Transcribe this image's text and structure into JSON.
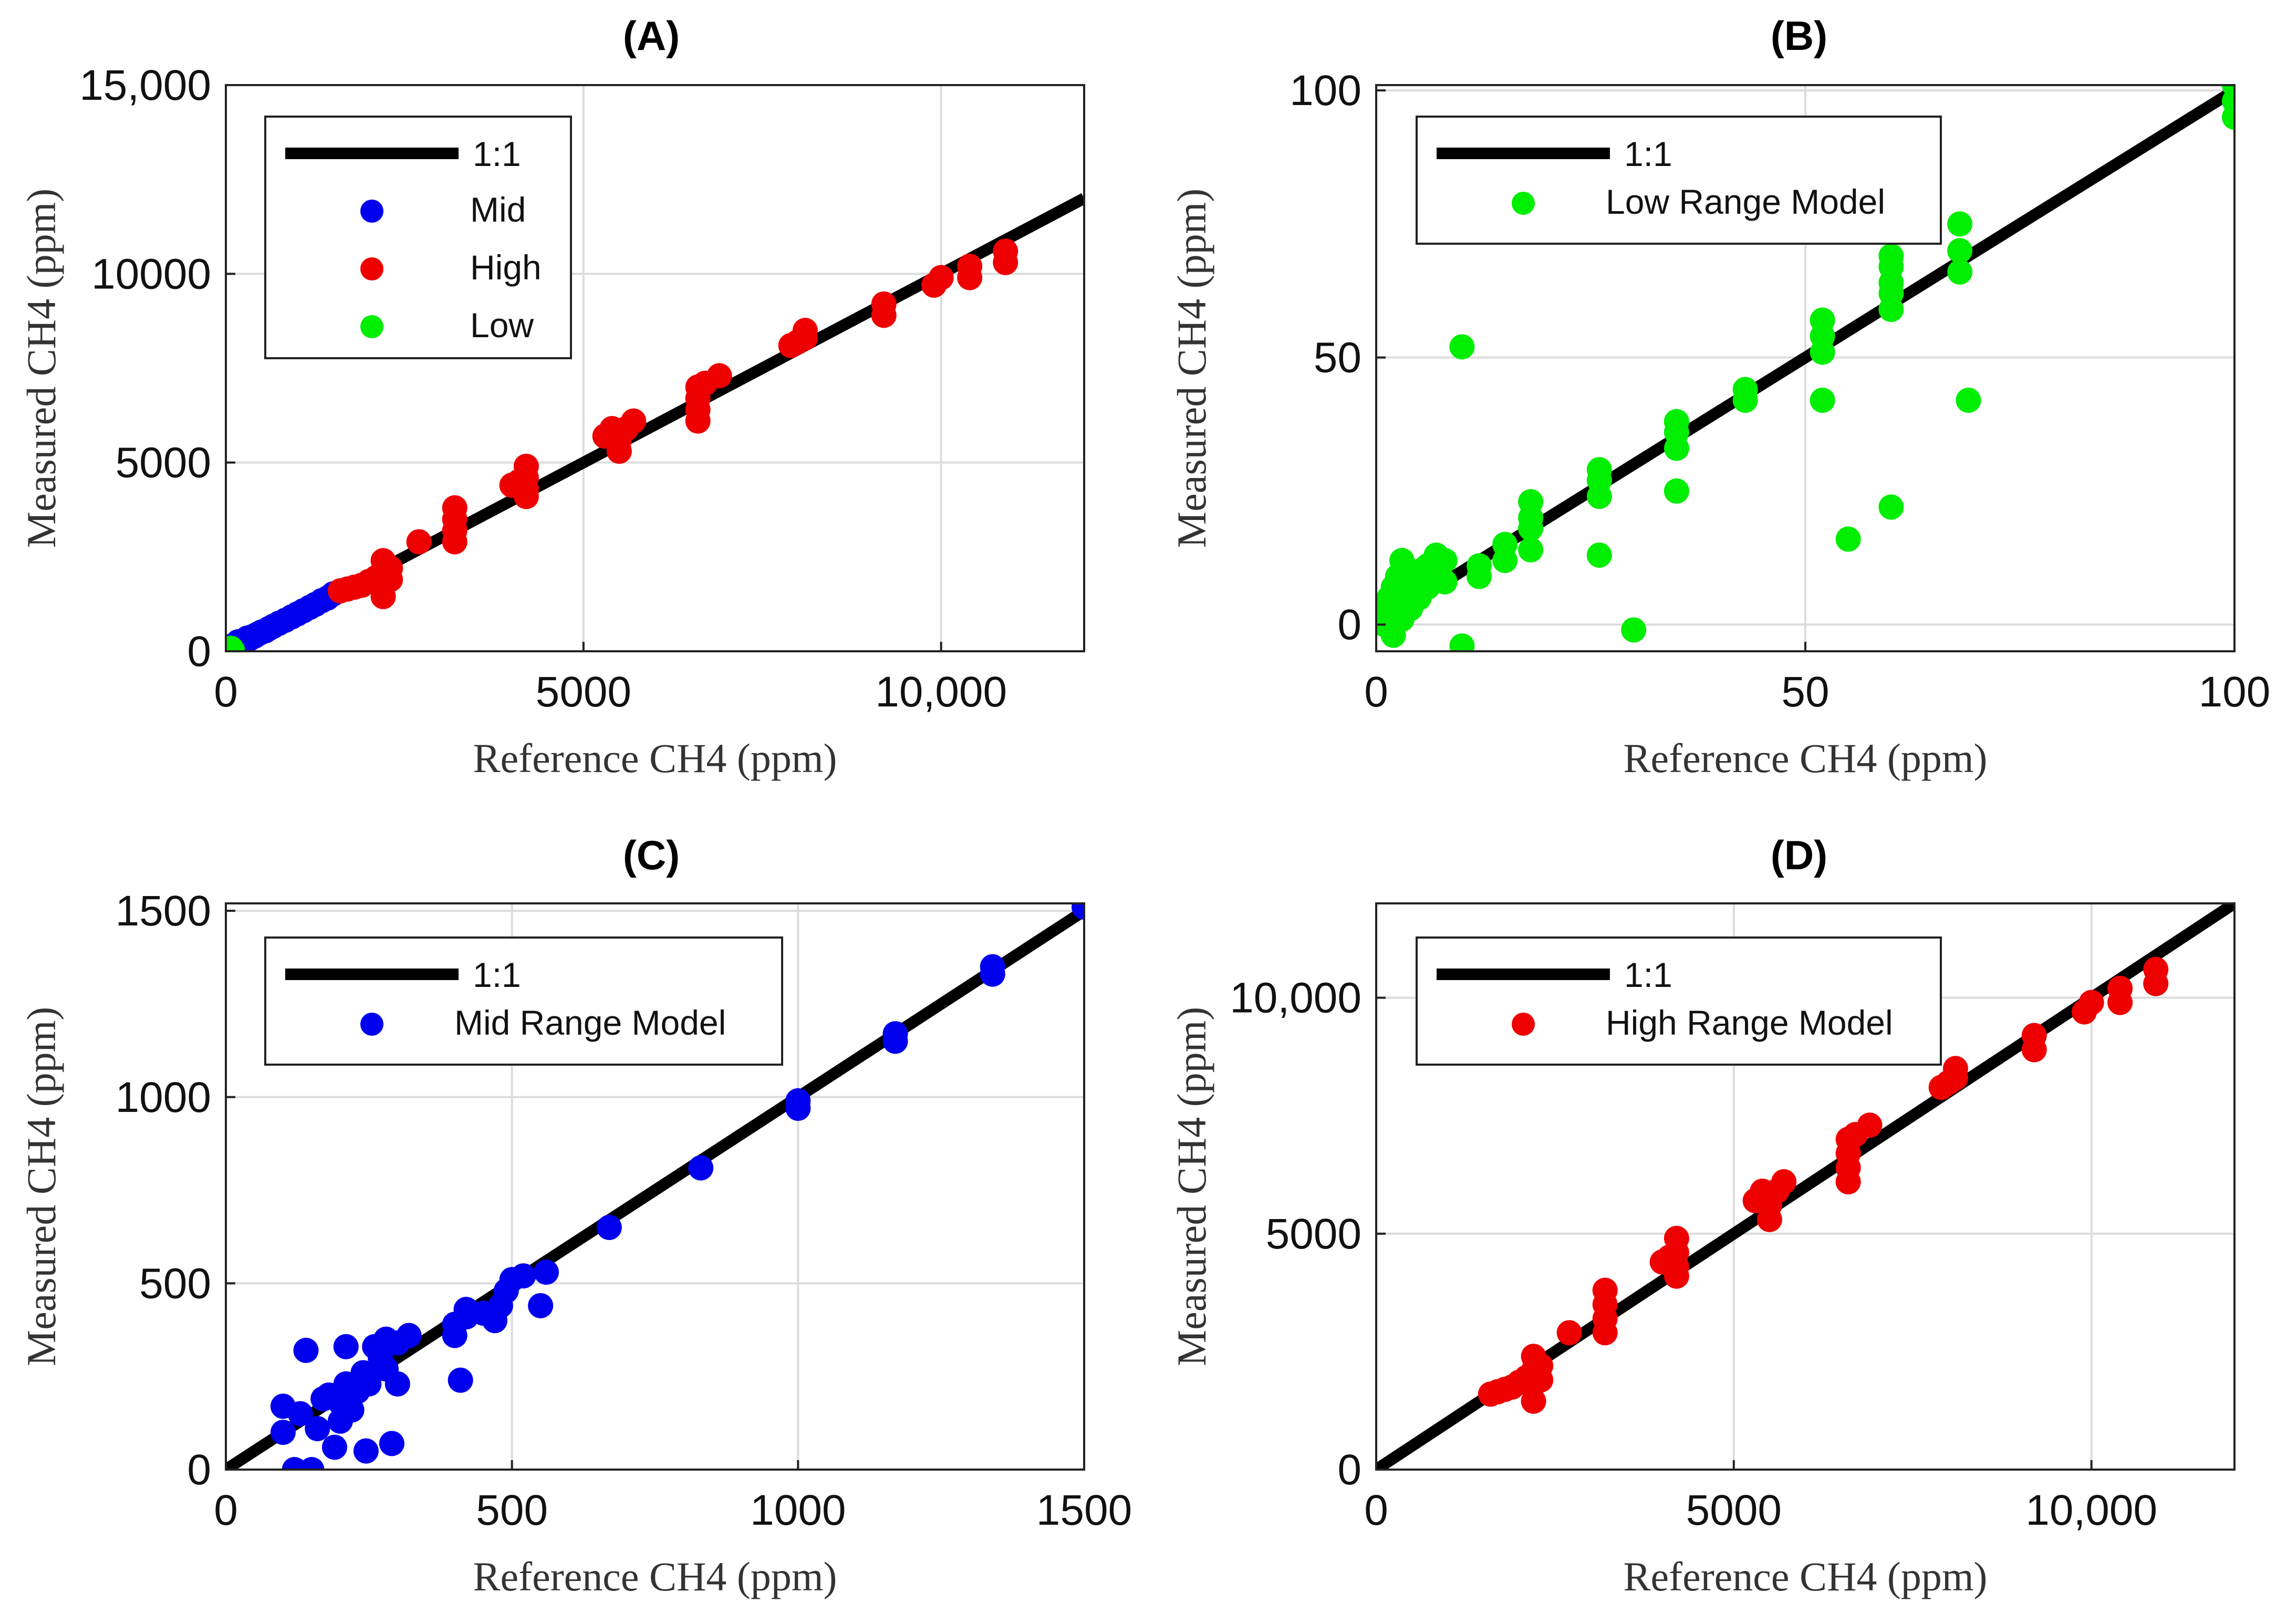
{
  "chart_data": [
    {
      "type": "scatter",
      "title": "(A)",
      "xlabel": "Reference CH4 (ppm)",
      "ylabel": "Measured CH4 (ppm)",
      "xlim": [
        0,
        12000
      ],
      "ylim": [
        0,
        15000
      ],
      "x_ticks": [
        0,
        5000,
        10000
      ],
      "x_tick_labels": [
        "0",
        "5000",
        "10,000"
      ],
      "y_ticks": [
        0,
        5000,
        10000,
        15000
      ],
      "y_tick_labels": [
        "0",
        "5000",
        "10000",
        "15,000"
      ],
      "grid": true,
      "legend_position": "top-left",
      "reference_line": {
        "name": "1:1",
        "color": "#000000"
      },
      "series": [
        {
          "name": "Mid",
          "color": "#0000ee",
          "points": [
            [
              110,
              160
            ],
            [
              130,
              0
            ],
            [
              150,
              110
            ],
            [
              170,
              250
            ],
            [
              200,
              140
            ],
            [
              220,
              180
            ],
            [
              240,
              230
            ],
            [
              260,
              200
            ],
            [
              280,
              300
            ],
            [
              300,
              350
            ],
            [
              330,
              330
            ],
            [
              360,
              380
            ],
            [
              400,
              400
            ],
            [
              420,
              430
            ],
            [
              460,
              470
            ],
            [
              500,
              510
            ],
            [
              550,
              540
            ],
            [
              600,
              600
            ],
            [
              660,
              660
            ],
            [
              740,
              740
            ],
            [
              830,
              820
            ],
            [
              920,
              910
            ],
            [
              1000,
              990
            ],
            [
              1080,
              1070
            ],
            [
              1170,
              1160
            ],
            [
              1250,
              1240
            ],
            [
              1340,
              1340
            ],
            [
              1420,
              1410
            ],
            [
              1500,
              1520
            ]
          ]
        },
        {
          "name": "High",
          "color": "#ee0000",
          "points": [
            [
              1600,
              1600
            ],
            [
              1700,
              1650
            ],
            [
              1800,
              1700
            ],
            [
              1900,
              1750
            ],
            [
              2000,
              1850
            ],
            [
              2100,
              1950
            ],
            [
              2200,
              1450
            ],
            [
              2200,
              1800
            ],
            [
              2200,
              2100
            ],
            [
              2200,
              2400
            ],
            [
              2300,
              1900
            ],
            [
              2300,
              2200
            ],
            [
              2700,
              2900
            ],
            [
              3200,
              2900
            ],
            [
              3200,
              3200
            ],
            [
              3200,
              3500
            ],
            [
              3200,
              3800
            ],
            [
              4000,
              4400
            ],
            [
              4100,
              4500
            ],
            [
              4200,
              4100
            ],
            [
              4200,
              4300
            ],
            [
              4200,
              4600
            ],
            [
              4200,
              4900
            ],
            [
              5300,
              5700
            ],
            [
              5400,
              5900
            ],
            [
              5500,
              5300
            ],
            [
              5500,
              5600
            ],
            [
              5600,
              5900
            ],
            [
              5700,
              6100
            ],
            [
              6600,
              6100
            ],
            [
              6600,
              6400
            ],
            [
              6600,
              6700
            ],
            [
              6600,
              7000
            ],
            [
              6700,
              7100
            ],
            [
              6900,
              7300
            ],
            [
              7900,
              8100
            ],
            [
              8000,
              8200
            ],
            [
              8100,
              8300
            ],
            [
              8100,
              8500
            ],
            [
              9200,
              8900
            ],
            [
              9200,
              9200
            ],
            [
              9900,
              9700
            ],
            [
              10000,
              9900
            ],
            [
              10400,
              9900
            ],
            [
              10400,
              10200
            ],
            [
              10900,
              10300
            ],
            [
              10900,
              10600
            ]
          ]
        },
        {
          "name": "Low",
          "color": "#00ee00",
          "points": [
            [
              10,
              20
            ],
            [
              30,
              60
            ],
            [
              50,
              40
            ],
            [
              70,
              80
            ],
            [
              90,
              30
            ],
            [
              60,
              10
            ]
          ]
        }
      ]
    },
    {
      "type": "scatter",
      "title": "(B)",
      "xlabel": "Reference CH4 (ppm)",
      "ylabel": "Measured CH4 (ppm)",
      "xlim": [
        0,
        100
      ],
      "ylim": [
        -5,
        101
      ],
      "x_ticks": [
        0,
        50,
        100
      ],
      "x_tick_labels": [
        "0",
        "50",
        "100"
      ],
      "y_ticks": [
        0,
        50,
        100
      ],
      "y_tick_labels": [
        "0",
        "50",
        "100"
      ],
      "grid": true,
      "legend_position": "top-left",
      "reference_line": {
        "name": "1:1",
        "color": "#000000"
      },
      "series": [
        {
          "name": "Low Range Model",
          "color": "#00ee00",
          "points": [
            [
              1,
              0
            ],
            [
              1,
              3
            ],
            [
              1.5,
              5
            ],
            [
              2,
              -2
            ],
            [
              2,
              2
            ],
            [
              2,
              7
            ],
            [
              2.5,
              9
            ],
            [
              3,
              1
            ],
            [
              3,
              4
            ],
            [
              3,
              12
            ],
            [
              3.5,
              6
            ],
            [
              4,
              3
            ],
            [
              4,
              8
            ],
            [
              5,
              5
            ],
            [
              5,
              10
            ],
            [
              6,
              7
            ],
            [
              6,
              11
            ],
            [
              7,
              9
            ],
            [
              7,
              13
            ],
            [
              8,
              8
            ],
            [
              8,
              12
            ],
            [
              10,
              52
            ],
            [
              10,
              -4
            ],
            [
              12,
              9
            ],
            [
              12,
              11
            ],
            [
              15,
              12
            ],
            [
              15,
              15
            ],
            [
              18,
              14
            ],
            [
              18,
              18
            ],
            [
              18,
              20
            ],
            [
              18,
              23
            ],
            [
              26,
              13
            ],
            [
              26,
              24
            ],
            [
              26,
              27
            ],
            [
              26,
              29
            ],
            [
              30,
              -1
            ],
            [
              35,
              25
            ],
            [
              35,
              33
            ],
            [
              35,
              36
            ],
            [
              35,
              38
            ],
            [
              43,
              42
            ],
            [
              43,
              44
            ],
            [
              52,
              42
            ],
            [
              52,
              51
            ],
            [
              52,
              54
            ],
            [
              52,
              57
            ],
            [
              55,
              16
            ],
            [
              60,
              22
            ],
            [
              60,
              59
            ],
            [
              60,
              62
            ],
            [
              60,
              64
            ],
            [
              60,
              67
            ],
            [
              60,
              69
            ],
            [
              68,
              66
            ],
            [
              68,
              70
            ],
            [
              68,
              75
            ],
            [
              69,
              42
            ],
            [
              100,
              95
            ],
            [
              100,
              98
            ],
            [
              100,
              101
            ]
          ]
        }
      ]
    },
    {
      "type": "scatter",
      "title": "(C)",
      "xlabel": "Reference CH4 (ppm)",
      "ylabel": "Measured CH4 (ppm)",
      "xlim": [
        0,
        1500
      ],
      "ylim": [
        0,
        1520
      ],
      "x_ticks": [
        0,
        500,
        1000,
        1500
      ],
      "x_tick_labels": [
        "0",
        "500",
        "1000",
        "1500"
      ],
      "y_ticks": [
        0,
        500,
        1000,
        1500
      ],
      "y_tick_labels": [
        "0",
        "500",
        "1000",
        "1500"
      ],
      "grid": true,
      "legend_position": "top-left",
      "reference_line": {
        "name": "1:1",
        "color": "#000000"
      },
      "series": [
        {
          "name": "Mid Range Model",
          "color": "#0000ee",
          "points": [
            [
              100,
              100
            ],
            [
              100,
              170
            ],
            [
              120,
              0
            ],
            [
              130,
              150
            ],
            [
              140,
              320
            ],
            [
              150,
              0
            ],
            [
              160,
              110
            ],
            [
              170,
              190
            ],
            [
              180,
              200
            ],
            [
              190,
              60
            ],
            [
              200,
              130
            ],
            [
              200,
              180
            ],
            [
              210,
              230
            ],
            [
              210,
              330
            ],
            [
              220,
              160
            ],
            [
              230,
              210
            ],
            [
              240,
              260
            ],
            [
              245,
              50
            ],
            [
              250,
              230
            ],
            [
              260,
              330
            ],
            [
              270,
              300
            ],
            [
              280,
              270
            ],
            [
              280,
              350
            ],
            [
              290,
              70
            ],
            [
              300,
              230
            ],
            [
              300,
              340
            ],
            [
              320,
              360
            ],
            [
              400,
              360
            ],
            [
              400,
              390
            ],
            [
              410,
              240
            ],
            [
              420,
              410
            ],
            [
              420,
              430
            ],
            [
              450,
              420
            ],
            [
              470,
              400
            ],
            [
              480,
              440
            ],
            [
              490,
              480
            ],
            [
              500,
              510
            ],
            [
              520,
              520
            ],
            [
              550,
              440
            ],
            [
              560,
              530
            ],
            [
              670,
              650
            ],
            [
              830,
              810
            ],
            [
              1000,
              970
            ],
            [
              1000,
              990
            ],
            [
              1170,
              1150
            ],
            [
              1170,
              1170
            ],
            [
              1340,
              1330
            ],
            [
              1340,
              1350
            ],
            [
              1500,
              1510
            ],
            [
              1500,
              1530
            ]
          ]
        }
      ]
    },
    {
      "type": "scatter",
      "title": "(D)",
      "xlabel": "Reference CH4 (ppm)",
      "ylabel": "Measured CH4 (ppm)",
      "xlim": [
        0,
        12000
      ],
      "ylim": [
        0,
        12000
      ],
      "x_ticks": [
        0,
        5000,
        10000
      ],
      "x_tick_labels": [
        "0",
        "5000",
        "10,000"
      ],
      "y_ticks": [
        0,
        5000,
        10000
      ],
      "y_tick_labels": [
        "0",
        "5000",
        "10,000"
      ],
      "grid": true,
      "legend_position": "top-left",
      "reference_line": {
        "name": "1:1",
        "color": "#000000"
      },
      "series": [
        {
          "name": "High Range Model",
          "color": "#ee0000",
          "points": [
            [
              1600,
              1600
            ],
            [
              1700,
              1650
            ],
            [
              1800,
              1700
            ],
            [
              1900,
              1750
            ],
            [
              2000,
              1850
            ],
            [
              2100,
              1950
            ],
            [
              2200,
              1450
            ],
            [
              2200,
              1800
            ],
            [
              2200,
              2100
            ],
            [
              2200,
              2400
            ],
            [
              2300,
              1900
            ],
            [
              2300,
              2200
            ],
            [
              2700,
              2900
            ],
            [
              3200,
              2900
            ],
            [
              3200,
              3200
            ],
            [
              3200,
              3500
            ],
            [
              3200,
              3800
            ],
            [
              4000,
              4400
            ],
            [
              4100,
              4500
            ],
            [
              4200,
              4100
            ],
            [
              4200,
              4300
            ],
            [
              4200,
              4600
            ],
            [
              4200,
              4900
            ],
            [
              5300,
              5700
            ],
            [
              5400,
              5900
            ],
            [
              5500,
              5300
            ],
            [
              5500,
              5600
            ],
            [
              5600,
              5900
            ],
            [
              5700,
              6100
            ],
            [
              6600,
              6100
            ],
            [
              6600,
              6400
            ],
            [
              6600,
              6700
            ],
            [
              6600,
              7000
            ],
            [
              6700,
              7100
            ],
            [
              6900,
              7300
            ],
            [
              7900,
              8100
            ],
            [
              8000,
              8200
            ],
            [
              8100,
              8300
            ],
            [
              8100,
              8500
            ],
            [
              9200,
              8900
            ],
            [
              9200,
              9200
            ],
            [
              9900,
              9700
            ],
            [
              10000,
              9900
            ],
            [
              10400,
              9900
            ],
            [
              10400,
              10200
            ],
            [
              10900,
              10300
            ],
            [
              10900,
              10600
            ]
          ]
        }
      ]
    }
  ]
}
